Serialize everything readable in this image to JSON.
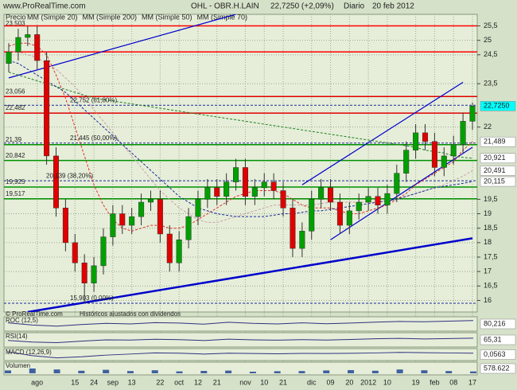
{
  "chart_data": {
    "type": "candlestick",
    "source": "www.ProRealTime.com",
    "title": "OHL - OBR.H.LAIN",
    "subtitle": "22,7250 (+2,09%)",
    "period": "Diario",
    "date": "20 feb 2012",
    "legend_prefix": "Precio",
    "footer": "© ProRealTime.com",
    "note": "Históricos ajustados con dividendos",
    "annotation": "23,503",
    "last_label": "22,7250",
    "up_color": "#00a000",
    "down_color": "#e00000",
    "categories": [
      null,
      null,
      null,
      "ago",
      null,
      null,
      null,
      "15",
      null,
      "24",
      null,
      "sep",
      null,
      "13",
      null,
      null,
      "22",
      null,
      "oct",
      null,
      "12",
      null,
      "21",
      null,
      null,
      "nov",
      null,
      "10",
      null,
      "21",
      null,
      null,
      "dic",
      null,
      "09",
      null,
      "20",
      null,
      "2012",
      null,
      "10",
      null,
      null,
      "19",
      null,
      "feb",
      null,
      "08",
      null,
      "17"
    ],
    "open": [
      24.2,
      24.6,
      25.1,
      25.2,
      24.3,
      21.0,
      19.2,
      18.0,
      17.3,
      16.6,
      17.2,
      18.2,
      19.0,
      18.6,
      18.9,
      19.4,
      19.5,
      18.3,
      17.3,
      18.1,
      18.9,
      19.5,
      19.9,
      19.6,
      20.1,
      20.6,
      19.6,
      19.9,
      20.1,
      19.8,
      19.2,
      17.8,
      18.4,
      19.5,
      19.9,
      19.4,
      18.6,
      19.1,
      19.4,
      19.6,
      19.3,
      19.7,
      20.4,
      21.2,
      21.8,
      21.5,
      20.6,
      21.0,
      21.4,
      22.2
    ],
    "high": [
      24.9,
      25.4,
      25.5,
      25.5,
      24.6,
      21.3,
      19.5,
      18.3,
      17.6,
      17.5,
      18.5,
      19.3,
      19.3,
      19.2,
      19.7,
      19.8,
      19.8,
      18.6,
      18.4,
      19.2,
      19.8,
      20.2,
      20.2,
      20.4,
      20.9,
      20.9,
      20.2,
      20.4,
      20.4,
      20.1,
      19.5,
      18.7,
      19.8,
      20.2,
      20.2,
      19.7,
      19.4,
      19.7,
      19.9,
      19.9,
      20.0,
      20.7,
      21.5,
      22.1,
      22.1,
      21.8,
      21.3,
      21.7,
      22.5,
      22.85
    ],
    "low": [
      23.9,
      24.3,
      24.8,
      24.0,
      20.7,
      18.9,
      17.7,
      17.0,
      15.9,
      16.3,
      16.9,
      17.9,
      18.3,
      18.3,
      18.6,
      19.1,
      18.0,
      17.0,
      17.0,
      17.8,
      18.6,
      19.2,
      19.3,
      19.3,
      19.8,
      19.3,
      19.3,
      19.6,
      19.5,
      18.9,
      17.5,
      17.5,
      18.1,
      19.2,
      19.1,
      18.3,
      18.3,
      18.8,
      19.1,
      19.0,
      19.0,
      19.4,
      20.1,
      20.9,
      21.2,
      20.3,
      20.3,
      20.7,
      21.1,
      21.9
    ],
    "close": [
      24.6,
      25.1,
      25.2,
      24.3,
      21.0,
      19.2,
      18.0,
      17.3,
      16.6,
      17.2,
      18.2,
      19.0,
      18.6,
      18.9,
      19.4,
      19.5,
      18.3,
      17.3,
      18.1,
      18.9,
      19.5,
      19.9,
      19.6,
      20.1,
      20.6,
      19.6,
      19.9,
      20.1,
      19.8,
      19.2,
      17.8,
      18.4,
      19.5,
      19.9,
      19.4,
      18.6,
      19.1,
      19.4,
      19.6,
      19.3,
      19.7,
      20.4,
      21.2,
      21.8,
      21.5,
      20.6,
      21.0,
      21.4,
      22.2,
      22.725
    ],
    "series": [
      {
        "name": "MM (Simple 20)",
        "color": "#e03030",
        "last_label": "21,489",
        "values": [
          24.8,
          24.9,
          24.9,
          24.8,
          24.5,
          23.8,
          23.0,
          22.0,
          21.0,
          20.0,
          19.3,
          18.8,
          18.5,
          18.4,
          18.5,
          18.6,
          18.6,
          18.5,
          18.5,
          18.6,
          18.8,
          19.0,
          19.2,
          19.4,
          19.6,
          19.7,
          19.8,
          19.8,
          19.8,
          19.7,
          19.5,
          19.3,
          19.2,
          19.2,
          19.2,
          19.1,
          19.0,
          19.0,
          19.1,
          19.2,
          19.3,
          19.5,
          19.7,
          20.0,
          20.2,
          20.4,
          20.6,
          20.8,
          21.2,
          21.489
        ]
      },
      {
        "name": "MM (Simple 200)",
        "color": "#208020",
        "last_label": "20,921",
        "values": [
          23.9,
          23.8,
          23.7,
          23.6,
          23.5,
          23.4,
          23.3,
          23.2,
          23.1,
          23.0,
          22.95,
          22.9,
          22.85,
          22.8,
          22.75,
          22.7,
          22.65,
          22.6,
          22.55,
          22.5,
          22.45,
          22.4,
          22.35,
          22.3,
          22.25,
          22.2,
          22.15,
          22.1,
          22.05,
          22.0,
          21.95,
          21.9,
          21.85,
          21.8,
          21.75,
          21.7,
          21.65,
          21.6,
          21.55,
          21.5,
          21.45,
          21.4,
          21.35,
          21.3,
          21.2,
          21.15,
          21.1,
          21.0,
          20.95,
          20.921
        ]
      },
      {
        "name": "MM (Simple 50)",
        "color": "#c8a0a8",
        "last_label": "20,491",
        "values": [
          24.6,
          24.6,
          24.5,
          24.4,
          24.2,
          24.0,
          23.7,
          23.4,
          23.0,
          22.6,
          22.2,
          21.8,
          21.4,
          21.0,
          20.6,
          20.2,
          19.8,
          19.5,
          19.2,
          19.0,
          18.8,
          18.7,
          18.7,
          18.8,
          18.9,
          19.0,
          19.1,
          19.2,
          19.3,
          19.3,
          19.3,
          19.3,
          19.3,
          19.35,
          19.4,
          19.4,
          19.4,
          19.4,
          19.4,
          19.4,
          19.45,
          19.5,
          19.6,
          19.7,
          19.8,
          19.9,
          20.0,
          20.15,
          20.3,
          20.491
        ]
      },
      {
        "name": "MM (Simple 70)",
        "color": "#1a2a9a",
        "last_label": "20,115",
        "values": [
          24.3,
          24.2,
          24.0,
          23.8,
          23.6,
          23.4,
          23.2,
          22.9,
          22.6,
          22.3,
          22.0,
          21.7,
          21.4,
          21.1,
          20.8,
          20.5,
          20.2,
          19.9,
          19.6,
          19.4,
          19.2,
          19.1,
          19.0,
          18.95,
          18.9,
          18.9,
          18.9,
          18.9,
          18.95,
          19.0,
          19.0,
          19.05,
          19.1,
          19.1,
          19.15,
          19.2,
          19.25,
          19.3,
          19.35,
          19.4,
          19.45,
          19.5,
          19.6,
          19.7,
          19.8,
          19.9,
          19.95,
          20.0,
          20.05,
          20.115
        ]
      }
    ],
    "levels": [
      {
        "value": 25.5,
        "color": "#ff0000"
      },
      {
        "value": 24.6,
        "color": "#ff0000"
      },
      {
        "value": 23.056,
        "label": "23,056",
        "color": "#e00000"
      },
      {
        "value": 22.482,
        "label": "22,482",
        "color": "#e00000"
      },
      {
        "value": 21.39,
        "label": "21,39",
        "color": "#009000"
      },
      {
        "value": 20.842,
        "label": "20,842",
        "color": "#009000"
      },
      {
        "value": 19.925,
        "label": "19,925",
        "color": "#009000"
      },
      {
        "value": 19.517,
        "label": "19,517",
        "color": "#009000"
      }
    ],
    "fib_levels": [
      {
        "value": 22.752,
        "label": "22,752 (61,80%)"
      },
      {
        "value": 21.445,
        "label": "21,445 (50,00%)"
      },
      {
        "value": 20.139,
        "label": "20,139 (38,20%)"
      },
      {
        "value": 15.903,
        "label": "15,903 (0,00%)"
      }
    ],
    "trend_lines": [
      {
        "color": "#0000cc",
        "points": [
          [
            0,
            23.7
          ],
          [
            24,
            25.9
          ]
        ]
      },
      {
        "color": "#0000cc",
        "points": [
          [
            2,
            15.6
          ],
          [
            49,
            18.15
          ]
        ]
      },
      {
        "color": "#0000cc",
        "points": [
          [
            31,
            20.0
          ],
          [
            48,
            23.55
          ]
        ]
      },
      {
        "color": "#0000cc",
        "points": [
          [
            34,
            18.1
          ],
          [
            49,
            21.3
          ]
        ]
      }
    ],
    "ylim": [
      15.6,
      25.9
    ],
    "yticks": [
      {
        "value": 25.5,
        "label": "25,5"
      },
      25,
      {
        "value": 24.5,
        "label": "24,5"
      },
      {
        "value": 23.5,
        "label": "23,5"
      },
      22,
      {
        "value": 19.5,
        "label": "19,5"
      },
      19,
      {
        "value": 18.5,
        "label": "18,5"
      },
      18,
      {
        "value": 17.5,
        "label": "17,5"
      },
      17,
      {
        "value": 16.5,
        "label": "16,5"
      },
      16
    ],
    "grid": true,
    "indicators": [
      {
        "name": "ROC (12,5)",
        "kind": "line",
        "color": "#303080",
        "last_label": "80,216",
        "ylim": [
          0,
          100
        ],
        "values": [
          60,
          40,
          30,
          45,
          55,
          50,
          62,
          58,
          48,
          65,
          55,
          50,
          60,
          52,
          58,
          66,
          72,
          70,
          75,
          80.216
        ]
      },
      {
        "name": "RSI(14)",
        "kind": "line",
        "color": "#303080",
        "last_label": "65,31",
        "ylim": [
          0,
          100
        ],
        "values": [
          45,
          30,
          25,
          38,
          50,
          48,
          55,
          52,
          44,
          56,
          50,
          47,
          52,
          48,
          54,
          60,
          63,
          58,
          62,
          65.31
        ]
      },
      {
        "name": "MACD (12,26,9)",
        "kind": "line",
        "color": "#303080",
        "last_label": "0,0563",
        "ylim": [
          -1,
          0.6
        ],
        "values": [
          0.3,
          -0.4,
          -0.8,
          -0.6,
          -0.3,
          -0.1,
          0.1,
          0.05,
          -0.1,
          0.05,
          0,
          -0.05,
          0.02,
          0,
          0.03,
          0.1,
          0.2,
          0.15,
          0.1,
          0.0563
        ]
      },
      {
        "name": "Volumen",
        "kind": "bar",
        "color": "#4060a0",
        "last_label": "578.622",
        "ylim": [
          0,
          3000000
        ],
        "values": [
          900000,
          1500000,
          1200000,
          800000,
          1100000,
          700000,
          950000,
          600000,
          750000,
          850000,
          500000,
          650000,
          700000,
          900000,
          1000000,
          800000,
          1200000,
          950000,
          700000,
          578622
        ]
      }
    ]
  }
}
